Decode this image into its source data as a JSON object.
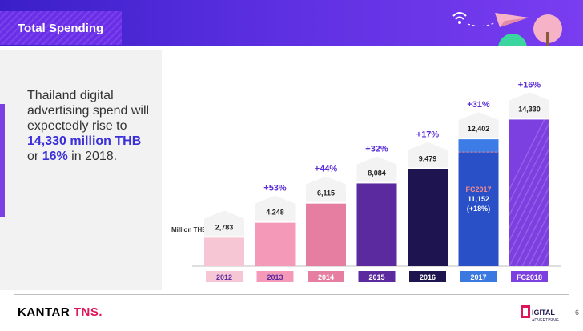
{
  "header": {
    "title": "Total Spending"
  },
  "description": {
    "line1": "Thailand digital advertising spend will expectedly rise to",
    "highlight1": "14,330 million THB",
    "mid": "or",
    "highlight2": "16%",
    "tail": "in 2018."
  },
  "footer": {
    "brand_main": "KANTAR",
    "brand_sub": "TNS.",
    "logo_text": "IGITAL",
    "logo_sub": "ADVERTISING",
    "page": "6"
  },
  "chart_data": {
    "type": "bar",
    "unit_label": "Million THB",
    "categories": [
      "2012",
      "2013",
      "2014",
      "2015",
      "2016",
      "2017",
      "FC2018"
    ],
    "values": [
      2783,
      4248,
      6115,
      8084,
      9479,
      12402,
      14330
    ],
    "value_labels": [
      "2,783",
      "4,248",
      "6,115",
      "8,084",
      "9,479",
      "12,402",
      "14,330"
    ],
    "growth_labels": [
      "",
      "+53%",
      "+44%",
      "+32%",
      "+17%",
      "+31%",
      "+16%"
    ],
    "forecast_2017": {
      "value": 11152,
      "label": "FC2017",
      "value_label": "11,152",
      "growth_label": "(+18%)"
    },
    "colors": [
      "#f7c6d4",
      "#f49ab8",
      "#e67ea2",
      "#5b2a9e",
      "#1e1450",
      "#2a50c8",
      "#7c3fe0"
    ],
    "label_colors": [
      "#f7c6d4",
      "#f49ab8",
      "#e67ea2",
      "#5b2a9e",
      "#1e1450",
      "#3a7ae0",
      "#7c3fe0"
    ],
    "label_text_colors": [
      "#5b2a9e",
      "#5b2a9e",
      "#ffffff",
      "#ffffff",
      "#ffffff",
      "#ffffff",
      "#ffffff"
    ],
    "actual_2017_top_color": "#3d7be6",
    "growth_color": "#5b2fd8",
    "forecast_label_color": "#f28a8a"
  }
}
